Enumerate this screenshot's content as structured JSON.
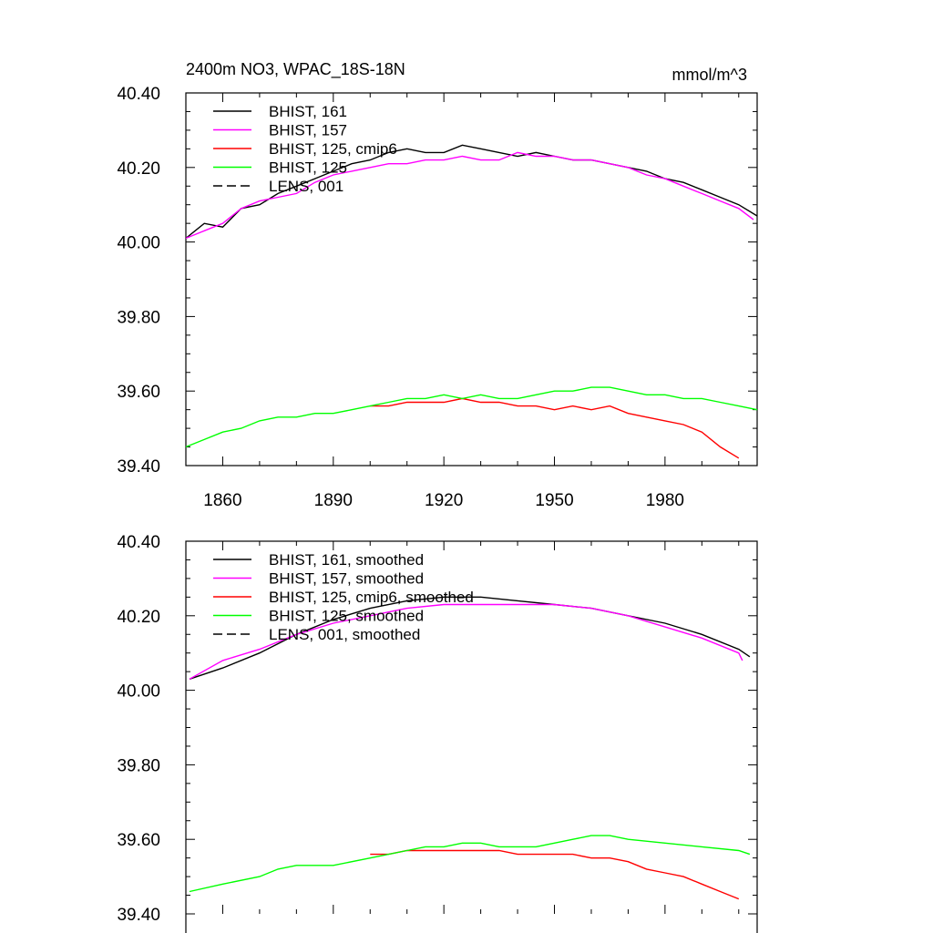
{
  "figure": {
    "title_left": "2400m NO3, WPAC_18S-18N",
    "units": "mmol/m^3"
  },
  "chart_data": [
    {
      "type": "line",
      "panel": "top",
      "xlim": [
        1850,
        2005
      ],
      "ylim": [
        39.4,
        40.4
      ],
      "x_ticks": [
        1860,
        1890,
        1920,
        1950,
        1980
      ],
      "x_tick_labels": [
        "1860",
        "1890",
        "1920",
        "1950",
        "1980"
      ],
      "y_ticks": [
        39.4,
        39.6,
        39.8,
        40.0,
        40.2,
        40.4
      ],
      "y_tick_labels": [
        "39.40",
        "39.60",
        "39.80",
        "40.00",
        "40.20",
        "40.40"
      ],
      "legend_position": "top-left",
      "series": [
        {
          "name": "BHIST, 161",
          "color": "#000000",
          "dash": "solid",
          "x": [
            1850,
            1855,
            1860,
            1865,
            1870,
            1875,
            1880,
            1885,
            1890,
            1895,
            1900,
            1905,
            1910,
            1915,
            1920,
            1925,
            1930,
            1935,
            1940,
            1945,
            1950,
            1955,
            1960,
            1965,
            1970,
            1975,
            1980,
            1985,
            1990,
            1995,
            2000,
            2005
          ],
          "y": [
            40.01,
            40.05,
            40.04,
            40.09,
            40.1,
            40.13,
            40.15,
            40.17,
            40.19,
            40.21,
            40.22,
            40.24,
            40.25,
            40.24,
            40.24,
            40.26,
            40.25,
            40.24,
            40.23,
            40.24,
            40.23,
            40.22,
            40.22,
            40.21,
            40.2,
            40.19,
            40.17,
            40.16,
            40.14,
            40.12,
            40.1,
            40.07
          ]
        },
        {
          "name": "BHIST, 157",
          "color": "#ff00ff",
          "dash": "solid",
          "x": [
            1850,
            1855,
            1860,
            1865,
            1870,
            1875,
            1880,
            1885,
            1890,
            1895,
            1900,
            1905,
            1910,
            1915,
            1920,
            1925,
            1930,
            1935,
            1940,
            1945,
            1950,
            1955,
            1960,
            1965,
            1970,
            1975,
            1980,
            1985,
            1990,
            1995,
            2000,
            2004
          ],
          "y": [
            40.01,
            40.03,
            40.05,
            40.09,
            40.11,
            40.12,
            40.13,
            40.16,
            40.18,
            40.19,
            40.2,
            40.21,
            40.21,
            40.22,
            40.22,
            40.23,
            40.22,
            40.22,
            40.24,
            40.23,
            40.23,
            40.22,
            40.22,
            40.21,
            40.2,
            40.18,
            40.17,
            40.15,
            40.13,
            40.11,
            40.09,
            40.06
          ]
        },
        {
          "name": "BHIST, 125, cmip6",
          "color": "#ff0000",
          "dash": "solid",
          "x": [
            1900,
            1905,
            1910,
            1915,
            1920,
            1925,
            1930,
            1935,
            1940,
            1945,
            1950,
            1955,
            1960,
            1965,
            1970,
            1975,
            1980,
            1985,
            1990,
            1995,
            2000
          ],
          "y": [
            39.56,
            39.56,
            39.57,
            39.57,
            39.57,
            39.58,
            39.57,
            39.57,
            39.56,
            39.56,
            39.55,
            39.56,
            39.55,
            39.56,
            39.54,
            39.53,
            39.52,
            39.51,
            39.49,
            39.45,
            39.42
          ]
        },
        {
          "name": "BHIST, 125",
          "color": "#00ff00",
          "dash": "solid",
          "x": [
            1850,
            1855,
            1860,
            1865,
            1870,
            1875,
            1880,
            1885,
            1890,
            1895,
            1900,
            1905,
            1910,
            1915,
            1920,
            1925,
            1930,
            1935,
            1940,
            1945,
            1950,
            1955,
            1960,
            1965,
            1970,
            1975,
            1980,
            1985,
            1990,
            1995,
            2000,
            2005
          ],
          "y": [
            39.45,
            39.47,
            39.49,
            39.5,
            39.52,
            39.53,
            39.53,
            39.54,
            39.54,
            39.55,
            39.56,
            39.57,
            39.58,
            39.58,
            39.59,
            39.58,
            39.59,
            39.58,
            39.58,
            39.59,
            39.6,
            39.6,
            39.61,
            39.61,
            39.6,
            39.59,
            39.59,
            39.58,
            39.58,
            39.57,
            39.56,
            39.55
          ]
        },
        {
          "name": "LENS, 001",
          "color": "#000000",
          "dash": "dashed",
          "x": [],
          "y": []
        }
      ]
    },
    {
      "type": "line",
      "panel": "bottom",
      "xlim": [
        1850,
        2005
      ],
      "ylim": [
        39.4,
        40.4
      ],
      "y_ticks": [
        39.4,
        39.6,
        39.8,
        40.0,
        40.2,
        40.4
      ],
      "y_tick_labels": [
        "39.40",
        "39.60",
        "39.80",
        "40.00",
        "40.20",
        "40.40"
      ],
      "legend_position": "top-left",
      "series": [
        {
          "name": "BHIST, 161, smoothed",
          "color": "#000000",
          "dash": "solid",
          "x": [
            1851,
            1860,
            1870,
            1880,
            1890,
            1900,
            1910,
            1920,
            1930,
            1940,
            1950,
            1960,
            1970,
            1980,
            1990,
            2000,
            2003
          ],
          "y": [
            40.03,
            40.06,
            40.1,
            40.15,
            40.19,
            40.22,
            40.24,
            40.25,
            40.25,
            40.24,
            40.23,
            40.22,
            40.2,
            40.18,
            40.15,
            40.11,
            40.09
          ]
        },
        {
          "name": "BHIST, 157, smoothed",
          "color": "#ff00ff",
          "dash": "solid",
          "x": [
            1851,
            1860,
            1870,
            1880,
            1890,
            1900,
            1910,
            1920,
            1930,
            1940,
            1950,
            1960,
            1970,
            1980,
            1990,
            2000,
            2001
          ],
          "y": [
            40.03,
            40.08,
            40.11,
            40.15,
            40.18,
            40.2,
            40.22,
            40.23,
            40.23,
            40.23,
            40.23,
            40.22,
            40.2,
            40.17,
            40.14,
            40.1,
            40.08
          ]
        },
        {
          "name": "BHIST, 125, cmip6, smoothed",
          "color": "#ff0000",
          "dash": "solid",
          "x": [
            1900,
            1905,
            1910,
            1915,
            1920,
            1925,
            1930,
            1935,
            1940,
            1945,
            1950,
            1955,
            1960,
            1965,
            1970,
            1975,
            1980,
            1985,
            1990,
            1995,
            2000
          ],
          "y": [
            39.56,
            39.56,
            39.57,
            39.57,
            39.57,
            39.57,
            39.57,
            39.57,
            39.56,
            39.56,
            39.56,
            39.56,
            39.55,
            39.55,
            39.54,
            39.52,
            39.51,
            39.5,
            39.48,
            39.46,
            39.44
          ]
        },
        {
          "name": "BHIST, 125, smoothed",
          "color": "#00ff00",
          "dash": "solid",
          "x": [
            1851,
            1860,
            1870,
            1875,
            1880,
            1890,
            1900,
            1910,
            1915,
            1920,
            1925,
            1930,
            1935,
            1940,
            1945,
            1950,
            1955,
            1960,
            1965,
            1970,
            1980,
            1990,
            2000,
            2003
          ],
          "y": [
            39.46,
            39.48,
            39.5,
            39.52,
            39.53,
            39.53,
            39.55,
            39.57,
            39.58,
            39.58,
            39.59,
            39.59,
            39.58,
            39.58,
            39.58,
            39.59,
            39.6,
            39.61,
            39.61,
            39.6,
            39.59,
            39.58,
            39.57,
            39.56
          ]
        },
        {
          "name": "LENS, 001, smoothed",
          "color": "#000000",
          "dash": "dashed",
          "x": [],
          "y": []
        }
      ]
    }
  ]
}
